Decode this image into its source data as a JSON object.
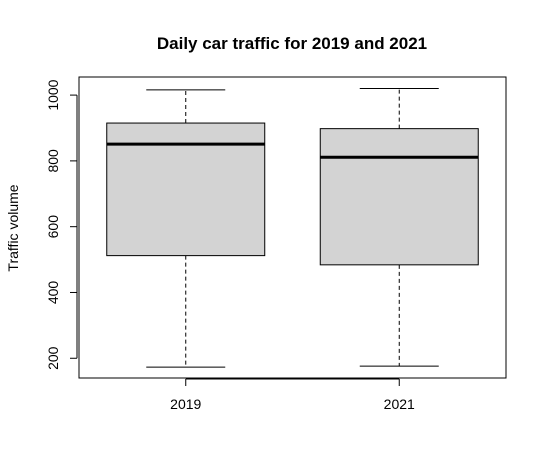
{
  "chart_data": {
    "type": "box",
    "title": "Daily car traffic for 2019 and 2021",
    "xlabel": "",
    "ylabel": "Traffic volume",
    "categories": [
      "2019",
      "2021"
    ],
    "yticks": [
      200,
      400,
      600,
      800,
      1000
    ],
    "ylim": [
      140,
      1055
    ],
    "boxes": [
      {
        "name": "2019",
        "min": 173,
        "q1": 512,
        "median": 851,
        "q3": 915,
        "max": 1016
      },
      {
        "name": "2021",
        "min": 176,
        "q1": 484,
        "median": 811,
        "q3": 898,
        "max": 1020
      }
    ],
    "grid": false,
    "legend": "none",
    "colors": {
      "box_fill": "#d3d3d3",
      "stroke": "#000000"
    }
  }
}
